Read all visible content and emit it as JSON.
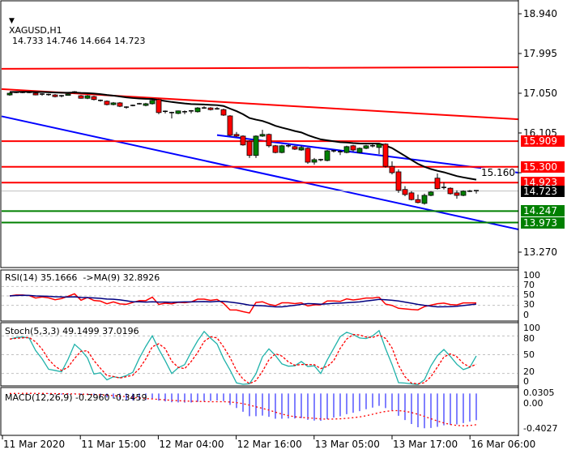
{
  "header": {
    "symbol": "XAGUSD,H1",
    "ohlc_readout": "14.733 14.746 14.664 14.723",
    "menu_icon": "triangle-down-icon"
  },
  "colors": {
    "bull": "#008000",
    "bear": "#ff0000",
    "ma": "#000000",
    "channel": "#0000ff",
    "resistance": "#ff0000",
    "support": "#008000",
    "stoch_main": "#20b2aa",
    "signal": "#ff0000",
    "rsi_ma": "#000080",
    "macd_hist": "#0000ff"
  },
  "chart_data": [
    {
      "type": "candlestick",
      "title": "XAGUSD,H1",
      "yaxis_ticks": [
        "18.940",
        "17.995",
        "17.050",
        "16.105",
        "15.160",
        "13.270"
      ],
      "ylim": [
        12.9,
        19.2
      ],
      "grid": false,
      "x_tick_labels": [
        "11 Mar 2020",
        "11 Mar 15:00",
        "12 Mar 04:00",
        "12 Mar 16:00",
        "13 Mar 05:00",
        "13 Mar 17:00",
        "16 Mar 06:00"
      ],
      "candles_ohlc": [
        [
          17.01,
          17.07,
          16.99,
          17.05
        ],
        [
          17.07,
          17.09,
          17.05,
          17.07
        ],
        [
          17.07,
          17.09,
          17.05,
          17.07
        ],
        [
          17.07,
          17.09,
          17.05,
          17.06
        ],
        [
          17.05,
          17.07,
          17.0,
          17.01
        ],
        [
          17.01,
          17.05,
          16.99,
          17.03
        ],
        [
          17.02,
          17.04,
          16.99,
          17.01
        ],
        [
          17.01,
          17.03,
          16.95,
          16.97
        ],
        [
          16.97,
          17.01,
          16.95,
          16.99
        ],
        [
          17.0,
          17.05,
          16.99,
          17.03
        ],
        [
          17.08,
          17.1,
          17.04,
          17.08
        ],
        [
          16.99,
          17.01,
          16.92,
          16.93
        ],
        [
          16.93,
          17.01,
          16.91,
          16.99
        ],
        [
          16.97,
          16.99,
          16.88,
          16.9
        ],
        [
          16.88,
          16.9,
          16.85,
          16.88
        ],
        [
          16.86,
          16.88,
          16.76,
          16.78
        ],
        [
          16.78,
          16.84,
          16.76,
          16.82
        ],
        [
          16.82,
          16.84,
          16.72,
          16.74
        ],
        [
          16.72,
          16.74,
          16.68,
          16.72
        ],
        [
          16.76,
          16.78,
          16.74,
          16.76
        ],
        [
          16.8,
          16.82,
          16.78,
          16.8
        ],
        [
          16.76,
          16.82,
          16.74,
          16.8
        ],
        [
          16.8,
          16.9,
          16.78,
          16.88
        ],
        [
          16.9,
          16.92,
          16.55,
          16.59
        ],
        [
          16.62,
          16.64,
          16.57,
          16.62
        ],
        [
          16.59,
          16.61,
          16.45,
          16.59
        ],
        [
          16.57,
          16.64,
          16.55,
          16.63
        ],
        [
          16.61,
          16.64,
          16.55,
          16.61
        ],
        [
          16.63,
          16.65,
          16.57,
          16.63
        ],
        [
          16.61,
          16.72,
          16.59,
          16.7
        ],
        [
          16.7,
          16.74,
          16.68,
          16.7
        ],
        [
          16.7,
          16.72,
          16.64,
          16.66
        ],
        [
          16.68,
          16.72,
          16.66,
          16.68
        ],
        [
          16.66,
          16.68,
          16.51,
          16.53
        ],
        [
          16.51,
          16.53,
          16.03,
          16.05
        ],
        [
          16.07,
          16.13,
          16.01,
          16.03
        ],
        [
          16.03,
          16.05,
          15.8,
          15.82
        ],
        [
          15.91,
          15.93,
          15.51,
          15.57
        ],
        [
          15.57,
          16.05,
          15.51,
          16.03
        ],
        [
          16.03,
          16.18,
          16.01,
          16.07
        ],
        [
          16.07,
          16.09,
          15.76,
          15.8
        ],
        [
          15.8,
          15.82,
          15.62,
          15.64
        ],
        [
          15.64,
          15.82,
          15.62,
          15.8
        ],
        [
          15.8,
          15.84,
          15.76,
          15.8
        ],
        [
          15.78,
          15.8,
          15.7,
          15.72
        ],
        [
          15.7,
          15.8,
          15.68,
          15.76
        ],
        [
          15.74,
          15.76,
          15.37,
          15.41
        ],
        [
          15.41,
          15.51,
          15.35,
          15.47
        ],
        [
          15.47,
          15.49,
          15.43,
          15.47
        ],
        [
          15.45,
          15.7,
          15.43,
          15.68
        ],
        [
          15.68,
          15.7,
          15.64,
          15.68
        ],
        [
          15.66,
          15.7,
          15.58,
          15.64
        ],
        [
          15.64,
          15.8,
          15.62,
          15.78
        ],
        [
          15.8,
          15.82,
          15.66,
          15.7
        ],
        [
          15.64,
          15.76,
          15.62,
          15.74
        ],
        [
          15.74,
          15.82,
          15.72,
          15.8
        ],
        [
          15.8,
          15.84,
          15.76,
          15.8
        ],
        [
          15.76,
          15.86,
          15.6,
          15.84
        ],
        [
          15.84,
          15.86,
          15.28,
          15.31
        ],
        [
          15.31,
          15.43,
          15.12,
          15.16
        ],
        [
          15.18,
          15.24,
          14.68,
          14.74
        ],
        [
          14.76,
          14.84,
          14.6,
          14.64
        ],
        [
          14.68,
          14.72,
          14.5,
          14.52
        ],
        [
          14.52,
          14.64,
          14.43,
          14.45
        ],
        [
          14.43,
          14.66,
          14.4,
          14.62
        ],
        [
          14.62,
          14.72,
          14.6,
          14.7
        ],
        [
          15.03,
          15.14,
          14.76,
          14.78
        ],
        [
          14.81,
          14.93,
          14.76,
          14.81
        ],
        [
          14.79,
          14.81,
          14.64,
          14.66
        ],
        [
          14.68,
          14.74,
          14.54,
          14.62
        ],
        [
          14.62,
          14.74,
          14.6,
          14.72
        ],
        [
          14.72,
          14.75,
          14.7,
          14.72
        ],
        [
          14.733,
          14.746,
          14.664,
          14.723
        ]
      ],
      "horizontal_levels": [
        {
          "price": "15.909",
          "kind": "resistance"
        },
        {
          "price": "15.300",
          "kind": "resistance"
        },
        {
          "price": "14.923",
          "kind": "resistance"
        },
        {
          "price": "14.247",
          "kind": "support"
        },
        {
          "price": "13.973",
          "kind": "support"
        }
      ],
      "current_price": "14.723",
      "trend_lines": [
        {
          "kind": "resistance",
          "price_left": 17.15,
          "price_right": 16.43,
          "from_bar": -1.5
        },
        {
          "kind": "resistance",
          "price_left": 17.63,
          "price_right": 17.67,
          "from_bar": -1.5
        },
        {
          "kind": "channel",
          "price_left": 16.7,
          "price_right": 15.16,
          "from_bar": 32
        },
        {
          "kind": "channel",
          "price_left": 16.51,
          "price_right": 13.81,
          "from_bar": -1.5
        }
      ]
    },
    {
      "type": "line",
      "title": "RSI(14) 35.1666  ->MA(9) 32.8926",
      "yaxis_ticks": [
        "100",
        "70",
        "50",
        "30",
        "0"
      ],
      "levels": [
        70,
        50,
        30
      ],
      "ylim": [
        0,
        100
      ]
    },
    {
      "type": "line",
      "title": "Stoch(5,3,3) 49.1499 37.0196",
      "yaxis_ticks": [
        "100",
        "80",
        "50",
        "20",
        "0"
      ],
      "levels": [
        80,
        50,
        20
      ],
      "ylim": [
        0,
        100
      ]
    },
    {
      "type": "bar",
      "title": "MACD(12,26,9) -0.2960 -0.3459",
      "yaxis_ticks": [
        "0.0305",
        "0.00",
        "-0.4027"
      ],
      "ylim": [
        -0.4027,
        0.0305
      ]
    }
  ]
}
